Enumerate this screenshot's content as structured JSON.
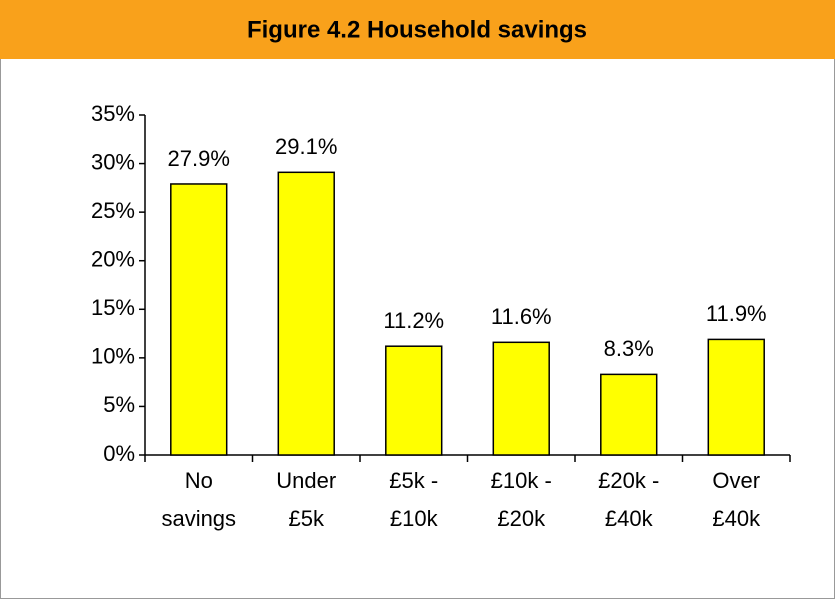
{
  "chart_data": {
    "type": "bar",
    "title": "Figure 4.2 Household savings",
    "categories": [
      "No savings",
      "Under £5k",
      "£5k - £10k",
      "£10k - £20k",
      "£20k - £40k",
      "Over £40k"
    ],
    "values": [
      27.9,
      29.1,
      11.2,
      11.6,
      8.3,
      11.9
    ],
    "value_labels": [
      "27.9%",
      "29.1%",
      "11.2%",
      "11.6%",
      "8.3%",
      "11.9%"
    ],
    "color": "#ffff00",
    "ylim": [
      0,
      35
    ],
    "yticks": [
      {
        "value": 0,
        "label": "0%"
      },
      {
        "value": 5,
        "label": "5%"
      },
      {
        "value": 10,
        "label": "10%"
      },
      {
        "value": 15,
        "label": "15%"
      },
      {
        "value": 20,
        "label": "20%"
      },
      {
        "value": 25,
        "label": "25%"
      },
      {
        "value": 30,
        "label": "30%"
      },
      {
        "value": 35,
        "label": "35%"
      }
    ],
    "grid": false
  }
}
